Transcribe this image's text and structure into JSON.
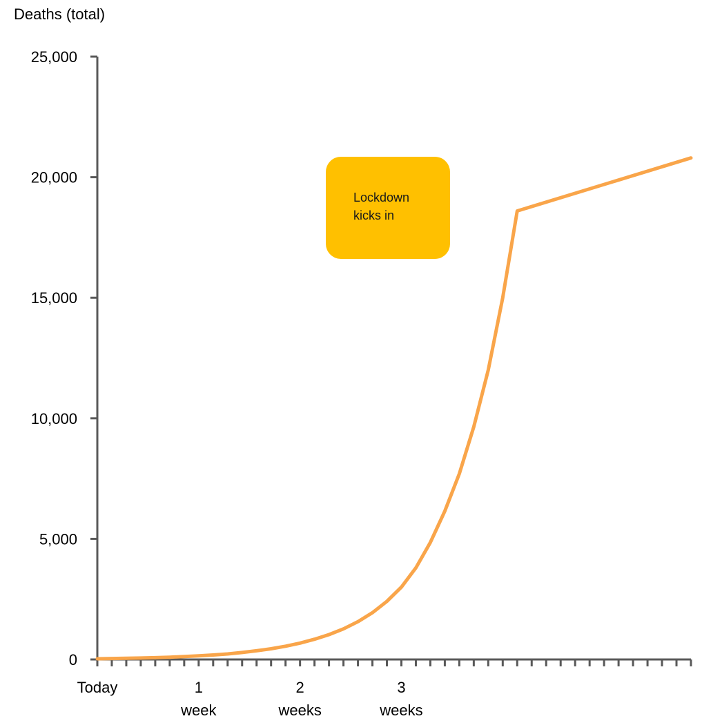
{
  "chart_data": {
    "type": "line",
    "title": "",
    "ylabel": "Deaths (total)",
    "xlabel": "",
    "ylim": [
      0,
      25000
    ],
    "xlim": [
      0,
      41
    ],
    "grid": false,
    "yticks": [
      {
        "value": 0,
        "label": "0"
      },
      {
        "value": 5000,
        "label": "5,000"
      },
      {
        "value": 10000,
        "label": "10,000"
      },
      {
        "value": 15000,
        "label": "15,000"
      },
      {
        "value": 20000,
        "label": "20,000"
      },
      {
        "value": 25000,
        "label": "25,000"
      }
    ],
    "xticks": [
      {
        "value": 0,
        "lines": [
          "Today"
        ]
      },
      {
        "value": 7,
        "lines": [
          "1",
          "week"
        ]
      },
      {
        "value": 14,
        "lines": [
          "2",
          "weeks"
        ]
      },
      {
        "value": 21,
        "lines": [
          "3",
          "weeks"
        ]
      }
    ],
    "series": [
      {
        "color": "#F9A54A",
        "x": [
          0,
          1,
          2,
          3,
          4,
          5,
          6,
          7,
          8,
          9,
          10,
          11,
          12,
          13,
          14,
          15,
          16,
          17,
          18,
          19,
          20,
          21,
          22,
          23,
          24,
          25,
          26,
          27,
          28,
          29,
          41
        ],
        "y": [
          30,
          40,
          50,
          60,
          75,
          95,
          120,
          150,
          185,
          230,
          290,
          360,
          445,
          550,
          680,
          840,
          1030,
          1270,
          1570,
          1940,
          2410,
          3000,
          3800,
          4850,
          6150,
          7700,
          9650,
          12000,
          15000,
          18600,
          20800
        ]
      }
    ],
    "annotations": [
      {
        "text_lines": [
          "Lockdown",
          "kicks in"
        ],
        "color": "#FFC000"
      }
    ]
  }
}
